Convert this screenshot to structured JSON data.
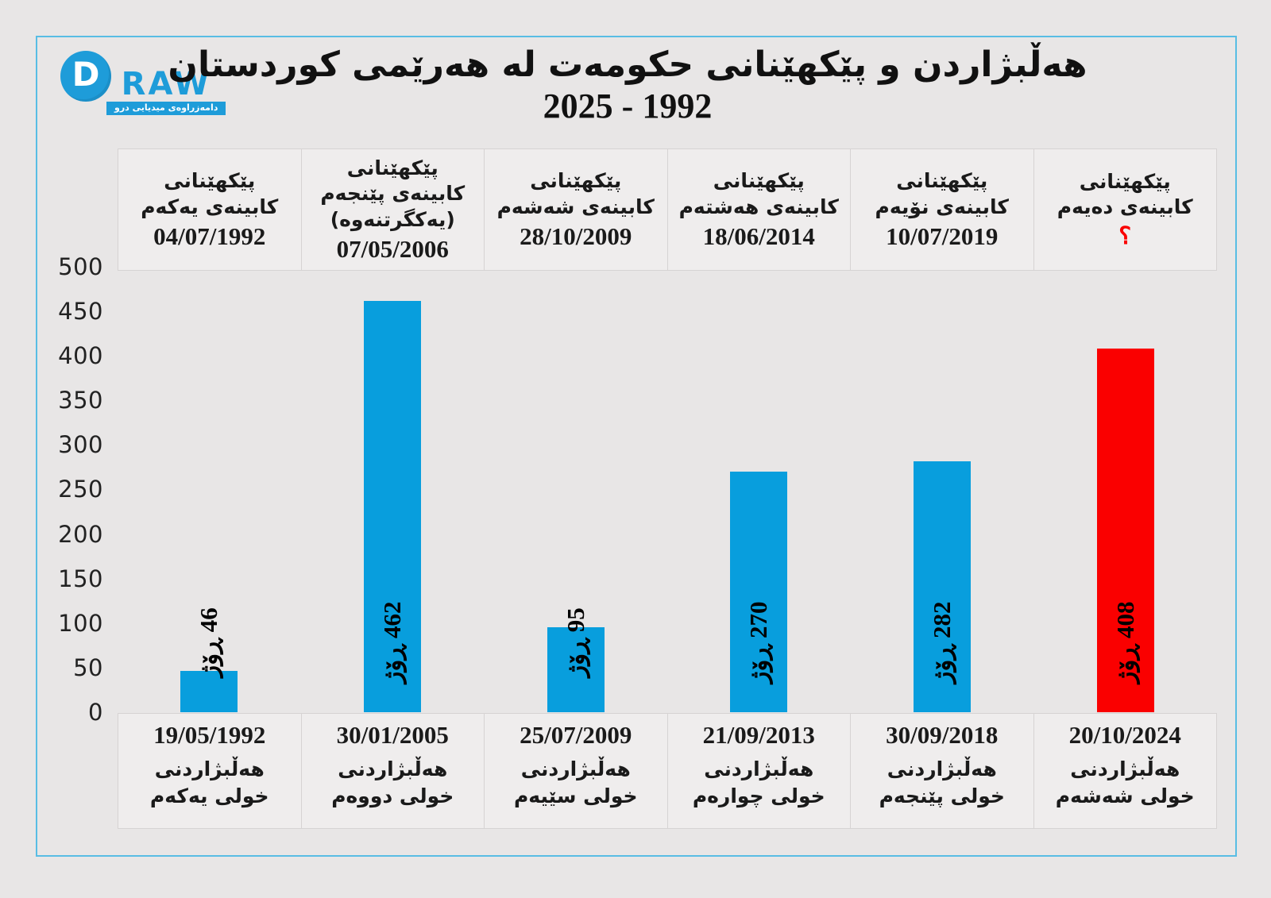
{
  "logo": {
    "d": "D",
    "raw": "RAW",
    "tagline": "دامەزراوەی میدیایی درو"
  },
  "title": {
    "line1": "هەڵبژاردن و پێکهێنانی حکومەت لە هەرێمی کوردستان",
    "line2": "2025 - 1992"
  },
  "colors": {
    "bar_blue": "#089edd",
    "bar_red": "#fa0000",
    "question_mark_red": "#fa0000",
    "frame_border_blue": "#58bde4",
    "logo_blue": "#1e9cd9",
    "background": "#e8e6e6",
    "cell_background": "#efeded"
  },
  "chart_data": {
    "type": "bar",
    "title": "هەڵبژاردن و پێکهێنانی حکومەت لە هەرێمی کوردستان 2025 - 1992",
    "xlabel": "",
    "ylabel": "",
    "unit": "ڕۆژ",
    "ylim": [
      0,
      500
    ],
    "ytick_labels": [
      "500",
      "450",
      "400",
      "350",
      "300",
      "250",
      "200",
      "150",
      "100",
      "50",
      "0"
    ],
    "grid": false,
    "legend": false,
    "columns": [
      {
        "formation_label": "پێکهێنانی کابینەی یەکەم",
        "formation_date": "04/07/1992",
        "value": 46,
        "bar_label": "46 ڕۆژ",
        "election_date": "19/05/1992",
        "election_label": "هەڵبژاردنی خولی یەکەم",
        "color": "#089edd"
      },
      {
        "formation_label": "پێکهێنانی کابینەی پێنجەم (یەکگرتنەوە)",
        "formation_date": "07/05/2006",
        "value": 462,
        "bar_label": "462 ڕۆژ",
        "election_date": "30/01/2005",
        "election_label": "هەڵبژاردنی خولی دووەم",
        "color": "#089edd"
      },
      {
        "formation_label": "پێکهێنانی کابینەی شەشەم",
        "formation_date": "28/10/2009",
        "value": 95,
        "bar_label": "95 ڕۆژ",
        "election_date": "25/07/2009",
        "election_label": "هەڵبژاردنی خولی سێیەم",
        "color": "#089edd"
      },
      {
        "formation_label": "پێکهێنانی کابینەی هەشتەم",
        "formation_date": "18/06/2014",
        "value": 270,
        "bar_label": "270 ڕۆژ",
        "election_date": "21/09/2013",
        "election_label": "هەڵبژاردنی خولی چوارەم",
        "color": "#089edd"
      },
      {
        "formation_label": "پێکهێنانی کابینەی نۆیەم",
        "formation_date": "10/07/2019",
        "value": 282,
        "bar_label": "282 ڕۆژ",
        "election_date": "30/09/2018",
        "election_label": "هەڵبژاردنی خولی پێنجەم",
        "color": "#089edd"
      },
      {
        "formation_label": "پێکهێنانی کابینەی دەیەم",
        "formation_date": "؟",
        "value": 408,
        "bar_label": "408 ڕۆژ",
        "election_date": "20/10/2024",
        "election_label": "هەڵبژاردنی خولی شەشەم",
        "color": "#fa0000"
      }
    ]
  }
}
